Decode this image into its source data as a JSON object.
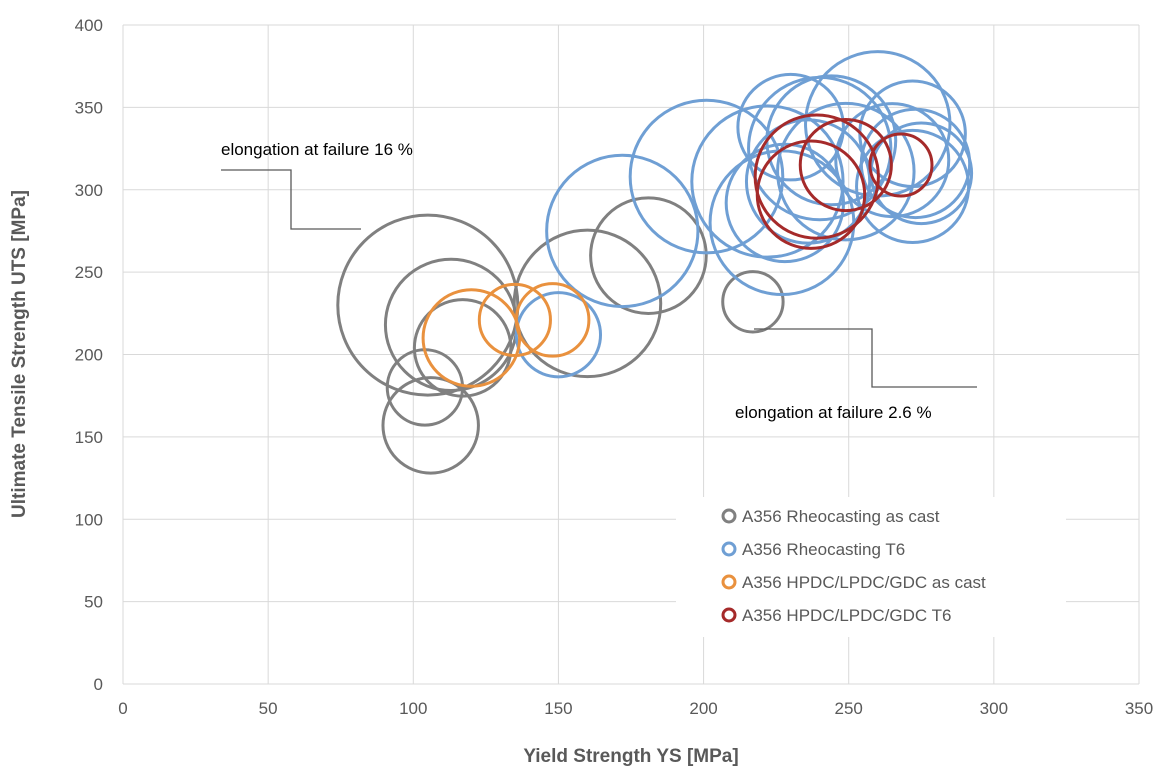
{
  "chart_data": {
    "type": "scatter",
    "title": "",
    "xlabel": "Yield Strength YS [MPa]",
    "ylabel": "Ultimate Tensile Strength UTS [MPa]",
    "xlim": [
      0,
      350
    ],
    "ylim": [
      0,
      400
    ],
    "xticks": [
      "0",
      "50",
      "100",
      "150",
      "200",
      "250",
      "300",
      "350"
    ],
    "yticks": [
      "0",
      "50",
      "100",
      "150",
      "200",
      "250",
      "300",
      "350",
      "400"
    ],
    "grid": true,
    "legend_position": "bottom-right",
    "annotations": [
      {
        "text": "elongation at failure 16 %"
      },
      {
        "text": "elongation at failure 2.6 %"
      }
    ],
    "series": [
      {
        "name": "A356 Rheocasting as cast",
        "color": "#808080",
        "points": [
          {
            "x": 105,
            "y": 230,
            "elongation": 16
          },
          {
            "x": 113,
            "y": 218,
            "elongation": 8.5
          },
          {
            "x": 117,
            "y": 204,
            "elongation": 4.6
          },
          {
            "x": 104,
            "y": 180,
            "elongation": 2.8
          },
          {
            "x": 106,
            "y": 157,
            "elongation": 4.5
          },
          {
            "x": 160,
            "y": 231,
            "elongation": 10.6
          },
          {
            "x": 181,
            "y": 260,
            "elongation": 6.6
          },
          {
            "x": 217,
            "y": 232,
            "elongation": 1.8
          }
        ]
      },
      {
        "name": "A356 Rheocasting T6",
        "color": "#6F9FD4",
        "points": [
          {
            "x": 150,
            "y": 212,
            "elongation": 3.5
          },
          {
            "x": 172,
            "y": 275,
            "elongation": 11.3
          },
          {
            "x": 201,
            "y": 308,
            "elongation": 11.5
          },
          {
            "x": 222,
            "y": 305,
            "elongation": 11.3
          },
          {
            "x": 227,
            "y": 280,
            "elongation": 10.2
          },
          {
            "x": 228,
            "y": 292,
            "elongation": 6.8
          },
          {
            "x": 230,
            "y": 338,
            "elongation": 5.5
          },
          {
            "x": 240,
            "y": 325,
            "elongation": 10.0
          },
          {
            "x": 236,
            "y": 305,
            "elongation": 7.5
          },
          {
            "x": 249,
            "y": 311,
            "elongation": 9.2
          },
          {
            "x": 244,
            "y": 330,
            "elongation": 8.2
          },
          {
            "x": 260,
            "y": 340,
            "elongation": 10.3
          },
          {
            "x": 265,
            "y": 318,
            "elongation": 6.3
          },
          {
            "x": 272,
            "y": 334,
            "elongation": 5.5
          },
          {
            "x": 273,
            "y": 316,
            "elongation": 5.8
          },
          {
            "x": 275,
            "y": 310,
            "elongation": 5.0
          },
          {
            "x": 272,
            "y": 302,
            "elongation": 6.2
          }
        ]
      },
      {
        "name": "A356 HPDC/LPDC/GDC as cast",
        "color": "#E9913E",
        "points": [
          {
            "x": 120,
            "y": 210,
            "elongation": 4.6
          },
          {
            "x": 135,
            "y": 221,
            "elongation": 2.5
          },
          {
            "x": 148,
            "y": 221,
            "elongation": 2.6
          }
        ]
      },
      {
        "name": "A356 HPDC/LPDC/GDC T6",
        "color": "#A52A2A",
        "points": [
          {
            "x": 239,
            "y": 308,
            "elongation": 7.5
          },
          {
            "x": 237,
            "y": 297,
            "elongation": 5.7
          },
          {
            "x": 249,
            "y": 315,
            "elongation": 4.1
          },
          {
            "x": 268,
            "y": 315,
            "elongation": 1.9
          }
        ]
      }
    ]
  }
}
